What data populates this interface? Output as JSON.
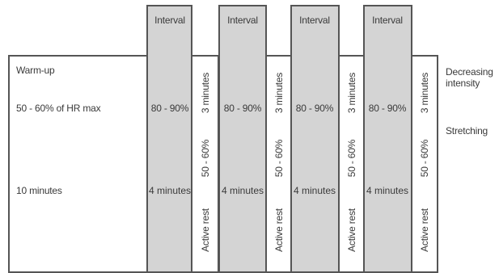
{
  "warmup": {
    "title": "Warm-up",
    "intensity": "50 - 60% of HR max",
    "duration": "10 minutes"
  },
  "intervals": [
    {
      "header": "Interval",
      "intensity": "80 - 90%",
      "duration": "4 minutes"
    },
    {
      "header": "Interval",
      "intensity": "80 - 90%",
      "duration": "4 minutes"
    },
    {
      "header": "Interval",
      "intensity": "80 - 90%",
      "duration": "4 minutes"
    },
    {
      "header": "Interval",
      "intensity": "80 - 90%",
      "duration": "4 minutes"
    }
  ],
  "rests": [
    {
      "duration": "3 minutes",
      "intensity": "50 - 60%",
      "label": "Active rest"
    },
    {
      "duration": "3 minutes",
      "intensity": "50 - 60%",
      "label": "Active rest"
    },
    {
      "duration": "3 minutes",
      "intensity": "50 - 60%",
      "label": "Active rest"
    },
    {
      "duration": "3 minutes",
      "intensity": "50 - 60%",
      "label": "Active rest"
    }
  ],
  "cooldown": {
    "line1": "Decreasing intensity",
    "line2": "Stretching"
  },
  "colors": {
    "interval_fill": "#d4d4d4",
    "border": "#555555",
    "text": "#3a3a3a"
  }
}
